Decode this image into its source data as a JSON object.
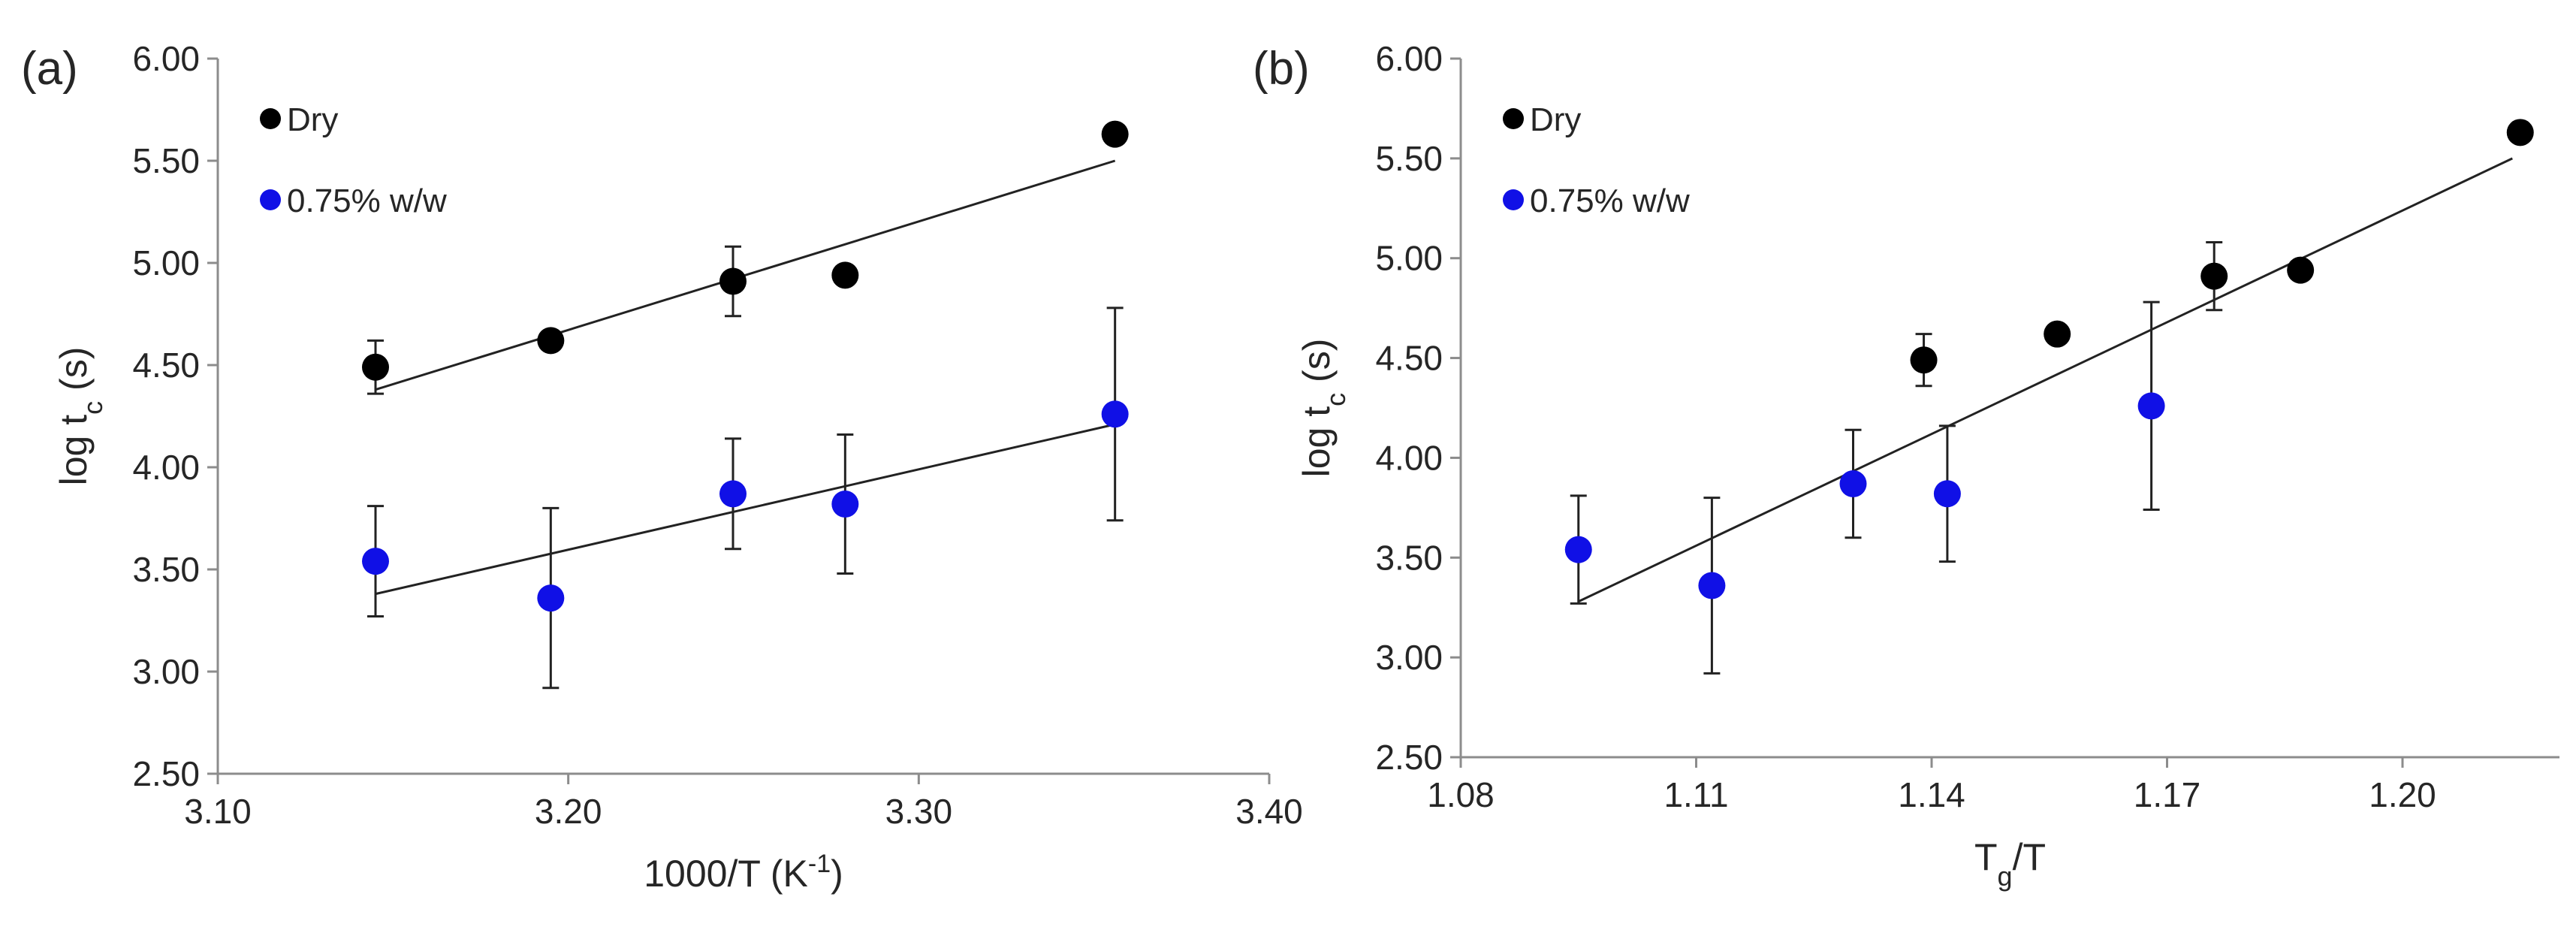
{
  "chart_data": [
    {
      "type": "scatter",
      "panel_label": "(a)",
      "xlabel": {
        "main": "1000/T (K",
        "sup": "-1",
        "tail": ")"
      },
      "ylabel": {
        "main": "log t",
        "sub": "c",
        "tail": " (s)"
      },
      "xlim": [
        3.1,
        3.4
      ],
      "ylim": [
        2.5,
        6.0
      ],
      "xticks": [
        3.1,
        3.2,
        3.3,
        3.4
      ],
      "yticks": [
        2.5,
        3.0,
        3.5,
        4.0,
        4.5,
        5.0,
        5.5,
        6.0
      ],
      "x_tick_labels": [
        "3.10",
        "3.20",
        "3.30",
        "3.40"
      ],
      "y_tick_labels": [
        "2.50",
        "3.00",
        "3.50",
        "4.00",
        "4.50",
        "5.00",
        "5.50",
        "6.00"
      ],
      "legend_position": "top-left",
      "series": [
        {
          "name": "Dry",
          "color": "#000000",
          "x": [
            3.145,
            3.195,
            3.247,
            3.279,
            3.356
          ],
          "y": [
            4.49,
            4.62,
            4.91,
            4.94,
            5.63
          ],
          "err": [
            0.13,
            0.0,
            0.17,
            0.0,
            0.0
          ],
          "trendline": {
            "x0": 3.145,
            "y0": 4.38,
            "x1": 3.356,
            "y1": 5.5
          }
        },
        {
          "name": "0.75% w/w",
          "color": "#1010e6",
          "x": [
            3.145,
            3.195,
            3.247,
            3.279,
            3.356
          ],
          "y": [
            3.54,
            3.36,
            3.87,
            3.82,
            4.26
          ],
          "err": [
            0.27,
            0.44,
            0.27,
            0.34,
            0.52
          ],
          "trendline": {
            "x0": 3.145,
            "y0": 3.38,
            "x1": 3.356,
            "y1": 4.21
          }
        }
      ]
    },
    {
      "type": "scatter",
      "panel_label": "(b)",
      "xlabel": {
        "main": "T",
        "sub": "g",
        "tail": "/T"
      },
      "ylabel": {
        "main": "log t",
        "sub": "c",
        "tail": " (s)"
      },
      "xlim": [
        1.08,
        1.22
      ],
      "ylim": [
        2.5,
        6.0
      ],
      "xticks": [
        1.08,
        1.11,
        1.14,
        1.17,
        1.2
      ],
      "yticks": [
        2.5,
        3.0,
        3.5,
        4.0,
        4.5,
        5.0,
        5.5,
        6.0
      ],
      "x_tick_labels": [
        "1.08",
        "1.11",
        "1.14",
        "1.17",
        "1.20"
      ],
      "y_tick_labels": [
        "2.50",
        "3.00",
        "3.50",
        "4.00",
        "4.50",
        "5.00",
        "5.50",
        "6.00"
      ],
      "legend_position": "top-left",
      "series": [
        {
          "name": "Dry",
          "color": "#000000",
          "x": [
            1.139,
            1.156,
            1.176,
            1.187,
            1.215
          ],
          "y": [
            4.49,
            4.62,
            4.91,
            4.94,
            5.63
          ],
          "err": [
            0.13,
            0.0,
            0.17,
            0.0,
            0.0
          ]
        },
        {
          "name": "0.75% w/w",
          "color": "#1010e6",
          "x": [
            1.095,
            1.112,
            1.13,
            1.142,
            1.168
          ],
          "y": [
            3.54,
            3.36,
            3.87,
            3.82,
            4.26
          ],
          "err": [
            0.27,
            0.44,
            0.27,
            0.34,
            0.52
          ]
        }
      ],
      "trendline": {
        "x0": 1.095,
        "y0": 3.28,
        "x1": 1.214,
        "y1": 5.5
      }
    }
  ]
}
